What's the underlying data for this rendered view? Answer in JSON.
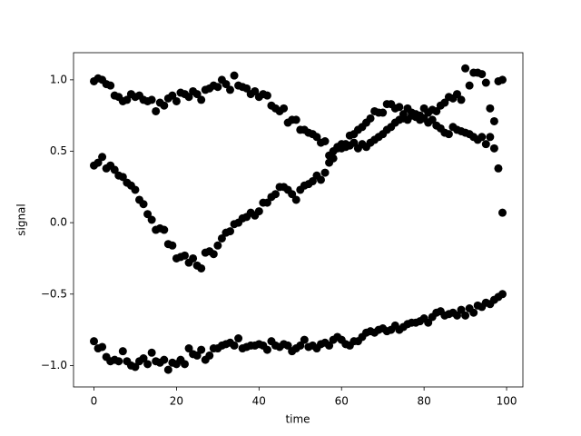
{
  "chart_data": {
    "type": "scatter",
    "x_label": "time",
    "y_label": "signal",
    "x": [
      0,
      1,
      2,
      3,
      4,
      5,
      6,
      7,
      8,
      9,
      10,
      11,
      12,
      13,
      14,
      15,
      16,
      17,
      18,
      19,
      20,
      21,
      22,
      23,
      24,
      25,
      26,
      27,
      28,
      29,
      30,
      31,
      32,
      33,
      34,
      35,
      36,
      37,
      38,
      39,
      40,
      41,
      42,
      43,
      44,
      45,
      46,
      47,
      48,
      49,
      50,
      51,
      52,
      53,
      54,
      55,
      56,
      57,
      58,
      59,
      60,
      61,
      62,
      63,
      64,
      65,
      66,
      67,
      68,
      69,
      70,
      71,
      72,
      73,
      74,
      75,
      76,
      77,
      78,
      79,
      80,
      81,
      82,
      83,
      84,
      85,
      86,
      87,
      88,
      89,
      90,
      91,
      92,
      93,
      94,
      95,
      96,
      97,
      98,
      99
    ],
    "series": [
      {
        "color": "#000000",
        "values": [
          0.99,
          1.01,
          1.0,
          0.97,
          0.96,
          0.89,
          0.88,
          0.85,
          0.86,
          0.9,
          0.88,
          0.89,
          0.86,
          0.85,
          0.86,
          0.78,
          0.84,
          0.82,
          0.87,
          0.89,
          0.85,
          0.91,
          0.9,
          0.88,
          0.92,
          0.9,
          0.86,
          0.93,
          0.94,
          0.96,
          0.95,
          1.0,
          0.97,
          0.93,
          1.03,
          0.96,
          0.95,
          0.94,
          0.9,
          0.92,
          0.88,
          0.9,
          0.89,
          0.82,
          0.8,
          0.78,
          0.8,
          0.7,
          0.72,
          0.72,
          0.65,
          0.65,
          0.63,
          0.62,
          0.6,
          0.56,
          0.57,
          0.47,
          0.5,
          0.53,
          0.55,
          0.53,
          0.54,
          0.56,
          0.52,
          0.55,
          0.53,
          0.56,
          0.58,
          0.6,
          0.62,
          0.65,
          0.67,
          0.7,
          0.72,
          0.73,
          0.72,
          0.75,
          0.74,
          0.72,
          0.73,
          0.7,
          0.72,
          0.68,
          0.66,
          0.63,
          0.62,
          0.67,
          0.65,
          0.64,
          0.63,
          0.62,
          0.6,
          0.58,
          0.6,
          0.55,
          0.6,
          0.52,
          0.38,
          0.07
        ]
      },
      {
        "color": "#000000",
        "values": [
          0.4,
          0.42,
          0.46,
          0.38,
          0.4,
          0.37,
          0.33,
          0.32,
          0.28,
          0.26,
          0.23,
          0.16,
          0.13,
          0.06,
          0.02,
          -0.05,
          -0.04,
          -0.05,
          -0.15,
          -0.16,
          -0.25,
          -0.24,
          -0.23,
          -0.28,
          -0.25,
          -0.3,
          -0.32,
          -0.21,
          -0.2,
          -0.22,
          -0.16,
          -0.11,
          -0.07,
          -0.06,
          -0.01,
          0.0,
          0.03,
          0.04,
          0.07,
          0.05,
          0.08,
          0.14,
          0.14,
          0.18,
          0.2,
          0.25,
          0.25,
          0.23,
          0.2,
          0.16,
          0.23,
          0.26,
          0.27,
          0.29,
          0.33,
          0.3,
          0.35,
          0.42,
          0.45,
          0.52,
          0.52,
          0.55,
          0.61,
          0.62,
          0.65,
          0.67,
          0.7,
          0.73,
          0.78,
          0.77,
          0.77,
          0.83,
          0.83,
          0.8,
          0.81,
          0.76,
          0.8,
          0.77,
          0.76,
          0.75,
          0.8,
          0.77,
          0.79,
          0.78,
          0.82,
          0.84,
          0.88,
          0.87,
          0.9,
          0.86,
          1.08,
          0.96,
          1.05,
          1.05,
          1.04,
          0.98,
          0.8,
          0.71,
          0.99,
          1.0
        ]
      },
      {
        "color": "#000000",
        "values": [
          -0.83,
          -0.88,
          -0.87,
          -0.94,
          -0.97,
          -0.96,
          -0.97,
          -0.9,
          -0.97,
          -1.0,
          -1.01,
          -0.97,
          -0.95,
          -0.99,
          -0.91,
          -0.97,
          -0.98,
          -0.96,
          -1.03,
          -0.98,
          -0.99,
          -0.96,
          -0.99,
          -0.88,
          -0.92,
          -0.93,
          -0.89,
          -0.96,
          -0.93,
          -0.88,
          -0.88,
          -0.86,
          -0.85,
          -0.84,
          -0.86,
          -0.81,
          -0.88,
          -0.87,
          -0.86,
          -0.86,
          -0.85,
          -0.86,
          -0.89,
          -0.83,
          -0.86,
          -0.87,
          -0.85,
          -0.86,
          -0.9,
          -0.88,
          -0.86,
          -0.82,
          -0.87,
          -0.86,
          -0.88,
          -0.85,
          -0.84,
          -0.86,
          -0.82,
          -0.8,
          -0.82,
          -0.85,
          -0.86,
          -0.83,
          -0.83,
          -0.8,
          -0.77,
          -0.76,
          -0.77,
          -0.75,
          -0.74,
          -0.76,
          -0.75,
          -0.72,
          -0.75,
          -0.73,
          -0.71,
          -0.7,
          -0.7,
          -0.69,
          -0.67,
          -0.7,
          -0.66,
          -0.63,
          -0.62,
          -0.65,
          -0.64,
          -0.63,
          -0.65,
          -0.61,
          -0.65,
          -0.6,
          -0.63,
          -0.58,
          -0.59,
          -0.56,
          -0.57,
          -0.54,
          -0.52,
          -0.5
        ]
      }
    ],
    "xlim": [
      -4.95,
      103.95
    ],
    "xticks": [
      0,
      20,
      40,
      60,
      80,
      100
    ],
    "ylim": [
      -1.15,
      1.19
    ],
    "yticks": [
      {
        "value": -1.0,
        "label": "−1.0"
      },
      {
        "value": -0.5,
        "label": "−0.5"
      },
      {
        "value": 0.0,
        "label": "0.0"
      },
      0.5,
      {
        "value": 1.0,
        "label": "1.0"
      }
    ],
    "grid": false
  }
}
